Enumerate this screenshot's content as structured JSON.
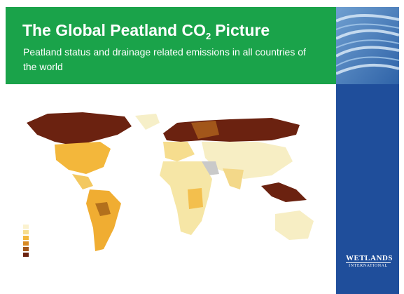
{
  "header": {
    "title": {
      "before": "The Global Peatland CO",
      "subscript": "2",
      "after": "Picture"
    },
    "subtitle": "Peatland status and drainage related emissions in all countries of the world"
  },
  "logo": {
    "line1": "WETLANDS",
    "line2": "INTERNATIONAL"
  }
}
